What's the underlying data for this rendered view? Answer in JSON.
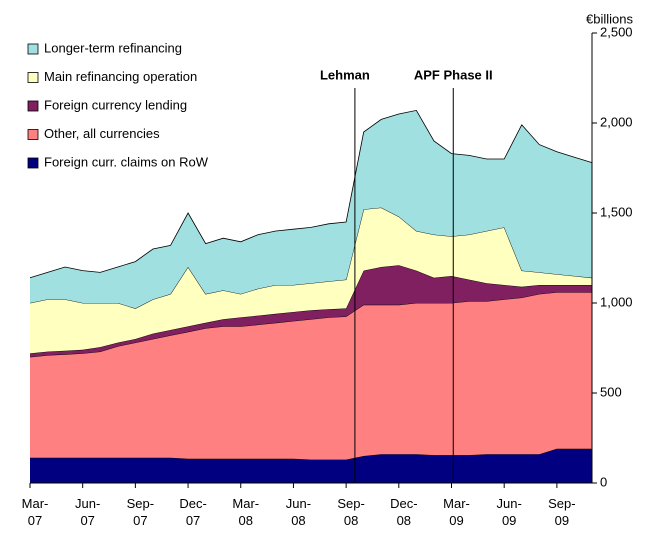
{
  "chart_data": {
    "type": "stacked_area",
    "y_axis_label": "€billions",
    "categories": [
      "Mar-07",
      null,
      null,
      "Jun-07",
      null,
      null,
      "Sep-07",
      null,
      null,
      "Dec-07",
      null,
      null,
      "Mar-08",
      null,
      null,
      "Jun-08",
      null,
      null,
      "Sep-08",
      null,
      null,
      "Dec-08",
      null,
      null,
      "Mar-09",
      null,
      null,
      "Jun-09",
      null,
      null,
      "Sep-09",
      null,
      null
    ],
    "series": [
      {
        "name": "Foreign curr. claims on RoW",
        "color": "#000080",
        "values": [
          140,
          140,
          140,
          140,
          140,
          140,
          140,
          140,
          140,
          135,
          135,
          135,
          135,
          135,
          135,
          135,
          130,
          130,
          130,
          150,
          160,
          160,
          160,
          155,
          155,
          155,
          160,
          160,
          160,
          160,
          190,
          190,
          190
        ]
      },
      {
        "name": "Other, all currencies",
        "color": "#ff8080",
        "values": [
          560,
          570,
          575,
          580,
          590,
          620,
          640,
          660,
          680,
          705,
          725,
          735,
          735,
          745,
          755,
          765,
          780,
          790,
          795,
          840,
          830,
          830,
          840,
          845,
          845,
          855,
          850,
          860,
          870,
          890,
          870,
          870,
          870
        ]
      },
      {
        "name": "Foreign currency lending",
        "color": "#802060",
        "values": [
          20,
          20,
          20,
          20,
          25,
          20,
          20,
          30,
          30,
          30,
          30,
          40,
          50,
          50,
          50,
          50,
          50,
          45,
          45,
          190,
          210,
          220,
          180,
          140,
          150,
          120,
          100,
          80,
          60,
          50,
          40,
          40,
          40
        ]
      },
      {
        "name": "Main refinancing operation",
        "color": "#ffffc0",
        "values": [
          280,
          290,
          285,
          260,
          245,
          220,
          170,
          190,
          200,
          330,
          160,
          160,
          130,
          150,
          160,
          150,
          150,
          155,
          160,
          340,
          330,
          270,
          220,
          240,
          220,
          250,
          290,
          320,
          90,
          70,
          60,
          50,
          40
        ]
      },
      {
        "name": "Longer-term refinancing",
        "color": "#a0e0e0",
        "values": [
          140,
          150,
          180,
          180,
          170,
          200,
          260,
          280,
          270,
          300,
          280,
          290,
          290,
          300,
          300,
          310,
          310,
          320,
          320,
          430,
          490,
          570,
          670,
          520,
          460,
          440,
          400,
          380,
          810,
          710,
          680,
          660,
          640
        ]
      }
    ],
    "annotations": [
      {
        "text": "Lehman",
        "x": 18.5
      },
      {
        "text": "APF Phase II",
        "x": 24.1
      }
    ],
    "ylim": [
      0,
      2500
    ],
    "yticks": [
      0,
      500,
      {
        "value": 1000,
        "label": "1,000"
      },
      {
        "value": 1500,
        "label": "1,500"
      },
      {
        "value": 2000,
        "label": "2,000"
      },
      {
        "value": 2500,
        "label": "2,500"
      }
    ],
    "legend": "top-left"
  }
}
